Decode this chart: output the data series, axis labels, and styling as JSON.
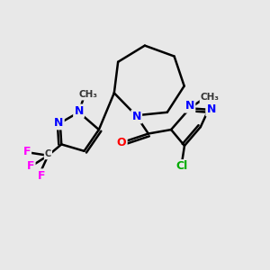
{
  "background_color": "#e8e8e8",
  "bond_color": "#000000",
  "atom_colors": {
    "N": "#0000ff",
    "O": "#ff0000",
    "F": "#ff00ff",
    "Cl": "#00aa00",
    "C": "#000000"
  },
  "figsize": [
    3.0,
    3.0
  ],
  "dpi": 100
}
